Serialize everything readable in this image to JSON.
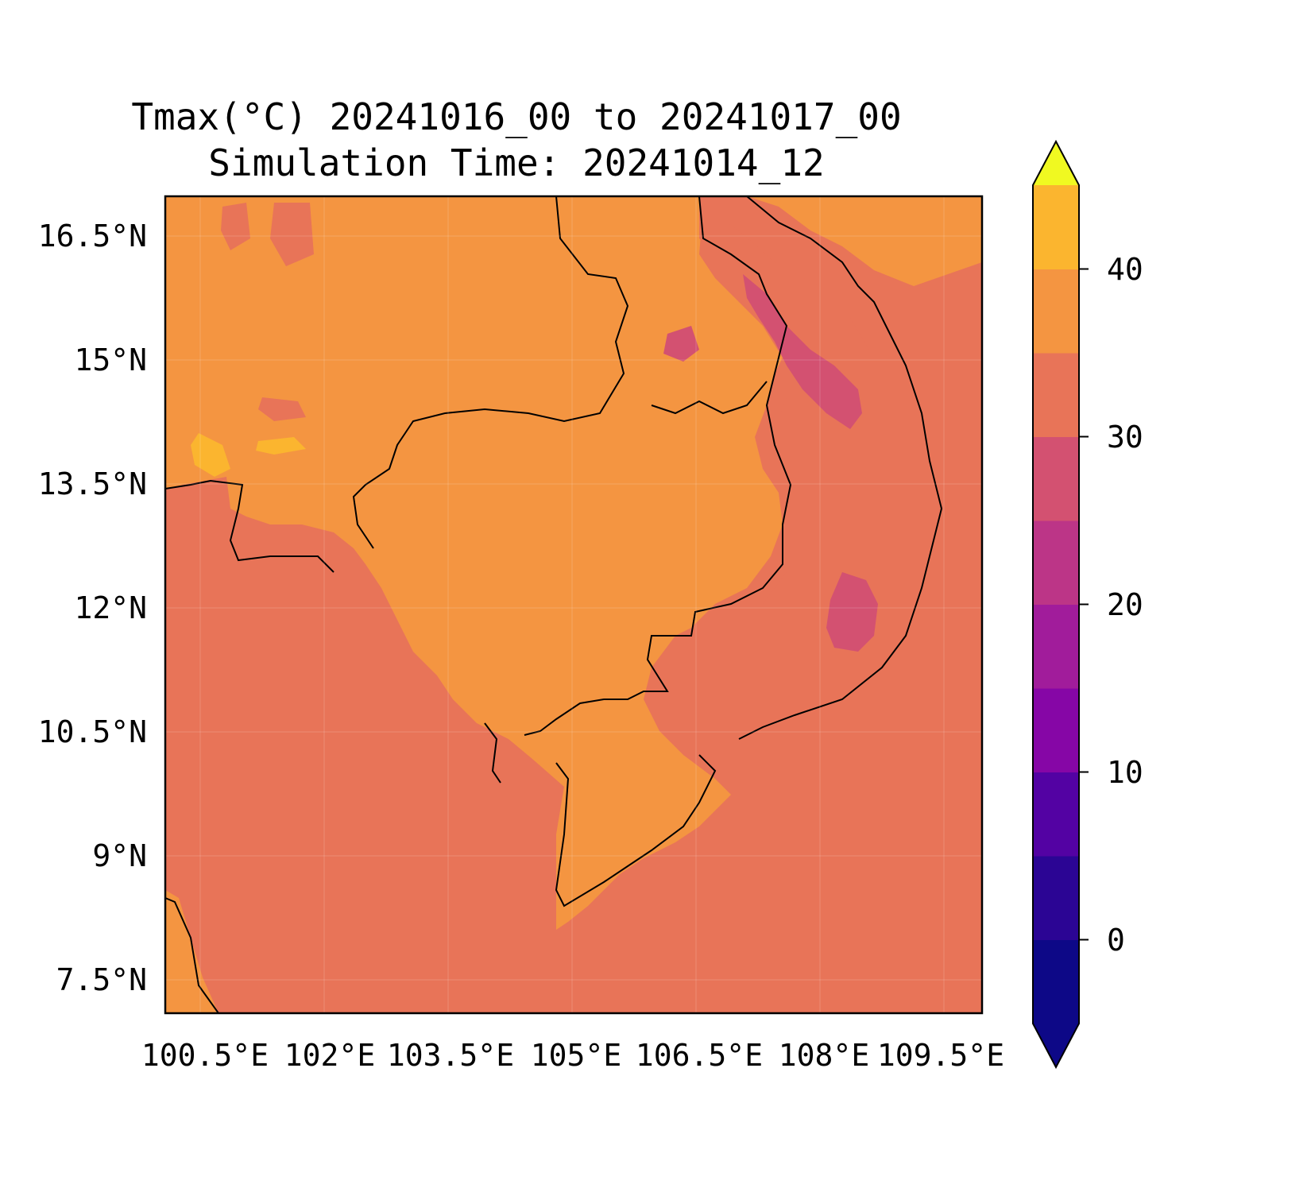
{
  "title": {
    "line1": "Tmax(°C) 20241016_00 to 20241017_00",
    "line2": "Simulation Time: 20241014_12"
  },
  "map": {
    "lat_labels": [
      "16.5°N",
      "15°N",
      "13.5°N",
      "12°N",
      "10.5°N",
      "9°N",
      "7.5°N"
    ],
    "lon_labels": [
      "100.5°E",
      "102°E",
      "103.5°E",
      "105°E",
      "106.5°E",
      "108°E",
      "109.5°E"
    ],
    "lat_range": [
      7.0,
      16.9
    ],
    "lon_range": [
      100.0,
      109.9
    ],
    "gridlines": true,
    "ocean_field_color": "#e87458",
    "land_field_color": "#f49541"
  },
  "colorbar": {
    "orientation": "vertical",
    "extend": "both",
    "tick_labels": [
      "0",
      "10",
      "20",
      "30",
      "40"
    ],
    "range": [
      -5,
      45
    ],
    "levels": [
      -5,
      0,
      5,
      10,
      15,
      20,
      25,
      30,
      35,
      40,
      45
    ],
    "colors": [
      "#0d0887",
      "#2b0594",
      "#5302a3",
      "#8606a6",
      "#a11c9b",
      "#bc3587",
      "#d35171",
      "#e87458",
      "#f49541",
      "#fbb52f",
      "#f3e021"
    ],
    "under_color": "#0d0887",
    "over_color": "#f0f921"
  }
}
